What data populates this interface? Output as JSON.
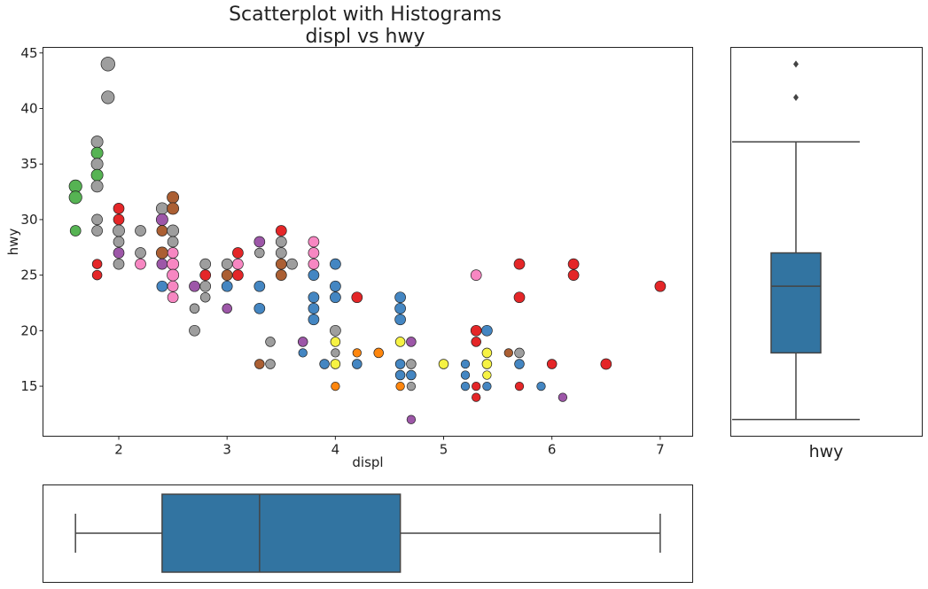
{
  "chart_data": [
    {
      "type": "scatter",
      "title": "Scatterplot with Histograms",
      "subtitle": "displ vs hwy",
      "xlabel": "displ",
      "ylabel": "hwy",
      "xlim": [
        1.3,
        7.3
      ],
      "ylim": [
        10.5,
        45.5
      ],
      "xticks": [
        2,
        3,
        4,
        5,
        6,
        7
      ],
      "yticks": [
        15,
        20,
        25,
        30,
        35,
        40,
        45
      ],
      "grid": false,
      "colors": {
        "red": "#e31a1c",
        "blue": "#3a7fbf",
        "green": "#4daf4a",
        "purple": "#984ea3",
        "orange": "#ff7f00",
        "yellow": "#f6f13a",
        "brown": "#a65628",
        "pink": "#f781bf",
        "gray": "#999999"
      },
      "points": [
        [
          1.6,
          33,
          "green",
          1.2
        ],
        [
          1.6,
          32,
          "green",
          1.2
        ],
        [
          1.6,
          29,
          "green",
          1
        ],
        [
          1.8,
          37,
          "gray",
          1.1
        ],
        [
          1.8,
          36,
          "green",
          1.1
        ],
        [
          1.8,
          35,
          "gray",
          1.1
        ],
        [
          1.8,
          34,
          "green",
          1.1
        ],
        [
          1.8,
          33,
          "gray",
          1.1
        ],
        [
          1.8,
          30,
          "gray",
          1
        ],
        [
          1.8,
          29,
          "gray",
          1
        ],
        [
          1.8,
          26,
          "red",
          0.9
        ],
        [
          1.8,
          25,
          "red",
          0.9
        ],
        [
          1.9,
          44,
          "gray",
          1.3
        ],
        [
          1.9,
          41,
          "gray",
          1.2
        ],
        [
          2.0,
          31,
          "red",
          1
        ],
        [
          2.0,
          30,
          "red",
          1
        ],
        [
          2.0,
          29,
          "gray",
          1.1
        ],
        [
          2.0,
          28,
          "gray",
          1
        ],
        [
          2.0,
          27,
          "purple",
          1
        ],
        [
          2.0,
          26,
          "gray",
          1
        ],
        [
          2.2,
          29,
          "gray",
          1
        ],
        [
          2.2,
          27,
          "gray",
          1
        ],
        [
          2.2,
          26,
          "pink",
          1
        ],
        [
          2.4,
          31,
          "gray",
          1.1
        ],
        [
          2.4,
          30,
          "purple",
          1.1
        ],
        [
          2.4,
          29,
          "brown",
          1
        ],
        [
          2.4,
          27,
          "brown",
          1.1
        ],
        [
          2.4,
          26,
          "purple",
          1
        ],
        [
          2.4,
          24,
          "blue",
          1
        ],
        [
          2.5,
          32,
          "brown",
          1.1
        ],
        [
          2.5,
          31,
          "brown",
          1.1
        ],
        [
          2.5,
          29,
          "gray",
          1.1
        ],
        [
          2.5,
          28,
          "gray",
          1
        ],
        [
          2.5,
          27,
          "pink",
          1
        ],
        [
          2.5,
          26,
          "pink",
          1.1
        ],
        [
          2.5,
          25,
          "pink",
          1.1
        ],
        [
          2.5,
          24,
          "pink",
          1
        ],
        [
          2.5,
          23,
          "pink",
          1
        ],
        [
          2.7,
          24,
          "purple",
          1
        ],
        [
          2.7,
          22,
          "gray",
          0.9
        ],
        [
          2.7,
          20,
          "gray",
          1
        ],
        [
          2.8,
          26,
          "gray",
          1
        ],
        [
          2.8,
          25,
          "red",
          1
        ],
        [
          2.8,
          24,
          "gray",
          1
        ],
        [
          2.8,
          23,
          "gray",
          0.9
        ],
        [
          3.0,
          26,
          "gray",
          1
        ],
        [
          3.0,
          25,
          "brown",
          1
        ],
        [
          3.0,
          24,
          "blue",
          1
        ],
        [
          3.0,
          22,
          "purple",
          0.9
        ],
        [
          3.1,
          27,
          "red",
          1
        ],
        [
          3.1,
          26,
          "pink",
          1
        ],
        [
          3.1,
          25,
          "red",
          1
        ],
        [
          3.3,
          28,
          "purple",
          1
        ],
        [
          3.3,
          27,
          "gray",
          0.9
        ],
        [
          3.3,
          24,
          "blue",
          1
        ],
        [
          3.3,
          22,
          "blue",
          1
        ],
        [
          3.3,
          17,
          "brown",
          0.9
        ],
        [
          3.4,
          19,
          "gray",
          0.9
        ],
        [
          3.4,
          17,
          "gray",
          0.9
        ],
        [
          3.5,
          29,
          "red",
          1
        ],
        [
          3.5,
          28,
          "gray",
          1
        ],
        [
          3.5,
          27,
          "gray",
          1
        ],
        [
          3.5,
          26,
          "brown",
          1
        ],
        [
          3.5,
          25,
          "brown",
          1
        ],
        [
          3.6,
          26,
          "gray",
          1
        ],
        [
          3.7,
          19,
          "purple",
          0.9
        ],
        [
          3.7,
          18,
          "blue",
          0.8
        ],
        [
          3.8,
          28,
          "pink",
          1
        ],
        [
          3.8,
          27,
          "pink",
          1
        ],
        [
          3.8,
          26,
          "pink",
          1
        ],
        [
          3.8,
          25,
          "blue",
          1
        ],
        [
          3.8,
          23,
          "blue",
          1
        ],
        [
          3.8,
          22,
          "blue",
          1
        ],
        [
          3.8,
          21,
          "blue",
          1
        ],
        [
          3.9,
          17,
          "blue",
          0.9
        ],
        [
          4.0,
          26,
          "blue",
          1
        ],
        [
          4.0,
          24,
          "blue",
          1
        ],
        [
          4.0,
          23,
          "blue",
          1
        ],
        [
          4.0,
          20,
          "gray",
          1
        ],
        [
          4.0,
          19,
          "yellow",
          0.9
        ],
        [
          4.0,
          18,
          "gray",
          0.8
        ],
        [
          4.0,
          17,
          "yellow",
          0.9
        ],
        [
          4.0,
          15,
          "orange",
          0.8
        ],
        [
          4.2,
          23,
          "red",
          1
        ],
        [
          4.2,
          18,
          "orange",
          0.8
        ],
        [
          4.2,
          17,
          "blue",
          0.9
        ],
        [
          4.4,
          18,
          "orange",
          0.9
        ],
        [
          4.6,
          23,
          "blue",
          1
        ],
        [
          4.6,
          22,
          "blue",
          1
        ],
        [
          4.6,
          21,
          "blue",
          1
        ],
        [
          4.6,
          19,
          "yellow",
          0.9
        ],
        [
          4.6,
          17,
          "blue",
          0.9
        ],
        [
          4.6,
          16,
          "blue",
          0.9
        ],
        [
          4.6,
          15,
          "orange",
          0.8
        ],
        [
          4.7,
          19,
          "purple",
          0.9
        ],
        [
          4.7,
          17,
          "gray",
          0.9
        ],
        [
          4.7,
          16,
          "blue",
          0.9
        ],
        [
          4.7,
          15,
          "gray",
          0.8
        ],
        [
          4.7,
          12,
          "purple",
          0.8
        ],
        [
          5.0,
          17,
          "yellow",
          0.9
        ],
        [
          5.2,
          17,
          "blue",
          0.8
        ],
        [
          5.2,
          16,
          "blue",
          0.8
        ],
        [
          5.2,
          15,
          "blue",
          0.8
        ],
        [
          5.3,
          25,
          "pink",
          1
        ],
        [
          5.3,
          20,
          "red",
          1
        ],
        [
          5.3,
          19,
          "red",
          0.9
        ],
        [
          5.3,
          15,
          "red",
          0.8
        ],
        [
          5.3,
          14,
          "red",
          0.8
        ],
        [
          5.4,
          20,
          "blue",
          1
        ],
        [
          5.4,
          18,
          "yellow",
          0.9
        ],
        [
          5.4,
          17,
          "yellow",
          0.9
        ],
        [
          5.4,
          16,
          "yellow",
          0.8
        ],
        [
          5.4,
          15,
          "blue",
          0.8
        ],
        [
          5.6,
          18,
          "brown",
          0.8
        ],
        [
          5.7,
          26,
          "red",
          1
        ],
        [
          5.7,
          23,
          "red",
          1
        ],
        [
          5.7,
          18,
          "gray",
          0.9
        ],
        [
          5.7,
          17,
          "blue",
          0.9
        ],
        [
          5.7,
          15,
          "red",
          0.8
        ],
        [
          5.9,
          15,
          "blue",
          0.8
        ],
        [
          6.0,
          17,
          "red",
          0.9
        ],
        [
          6.1,
          14,
          "purple",
          0.8
        ],
        [
          6.2,
          26,
          "red",
          1
        ],
        [
          6.2,
          25,
          "red",
          1
        ],
        [
          6.5,
          17,
          "red",
          1
        ],
        [
          7.0,
          24,
          "red",
          1
        ]
      ]
    },
    {
      "type": "boxplot",
      "orientation": "vertical",
      "variable": "hwy",
      "xlabel": "hwy",
      "ylim": [
        10.5,
        45.5
      ],
      "whisker_low": 12,
      "q1": 18,
      "median": 24,
      "q3": 27,
      "whisker_high": 37,
      "outliers": [
        41,
        44
      ],
      "color": "#3274a1"
    },
    {
      "type": "boxplot",
      "orientation": "horizontal",
      "variable": "displ",
      "xlim": [
        1.3,
        7.3
      ],
      "whisker_low": 1.6,
      "q1": 2.4,
      "median": 3.3,
      "q3": 4.6,
      "whisker_high": 7.0,
      "outliers": [],
      "color": "#3274a1"
    }
  ]
}
